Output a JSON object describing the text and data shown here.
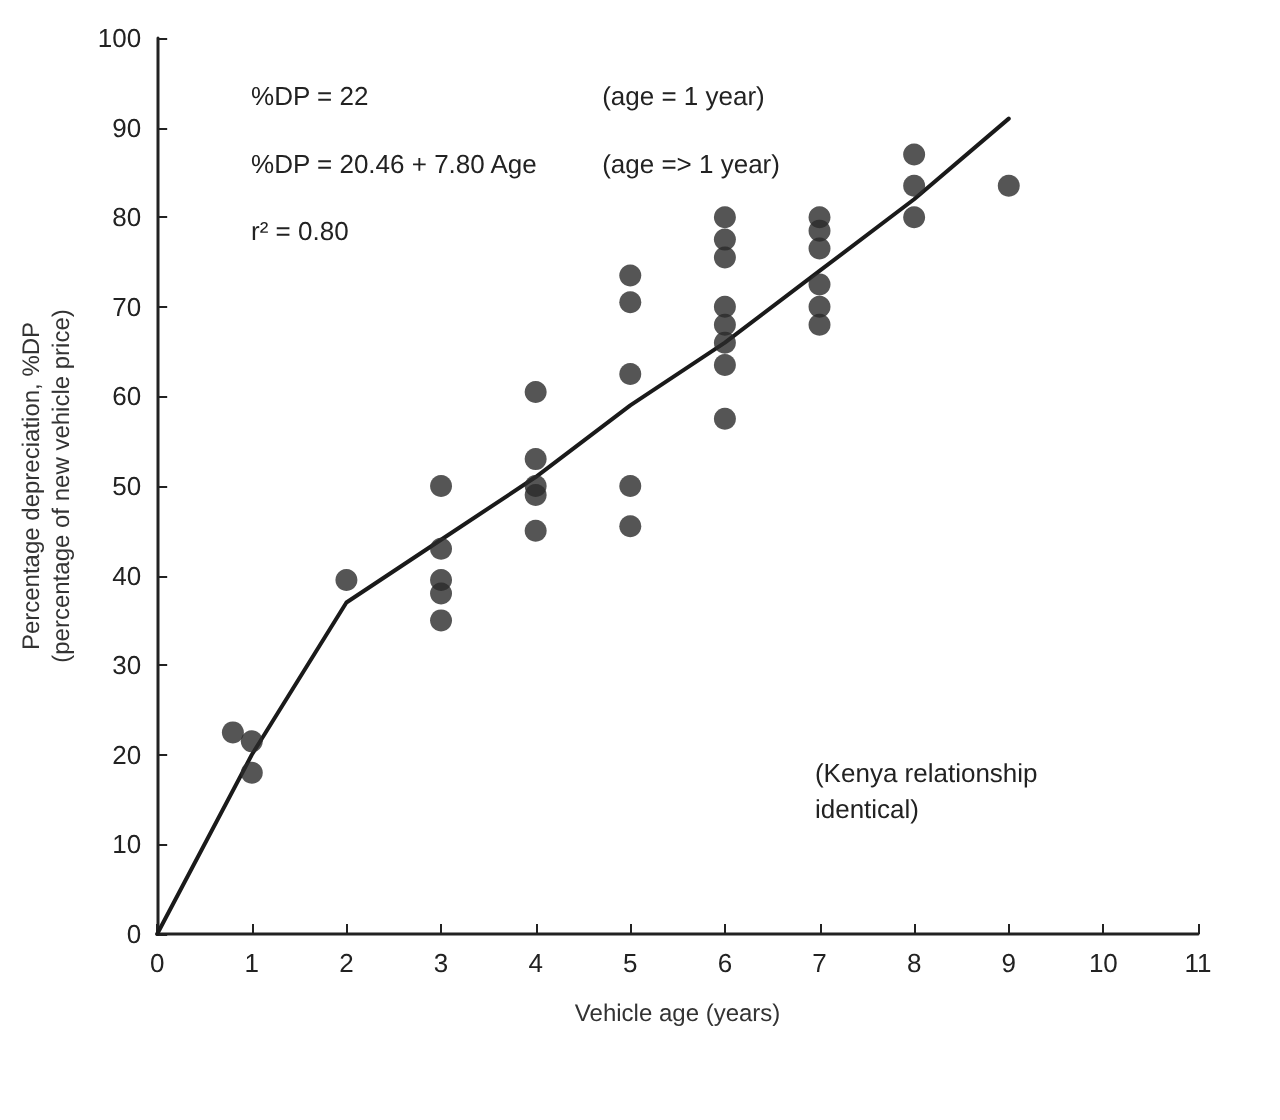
{
  "chart_data": {
    "type": "scatter",
    "xlabel": "Vehicle age (years)",
    "ylabel": "Percentage depreciation, %DP\n(percentage of new vehicle price)",
    "xlim": [
      0,
      11
    ],
    "xticks": [
      0,
      1,
      2,
      3,
      4,
      5,
      6,
      7,
      8,
      9,
      10,
      11
    ],
    "ylim": [
      0,
      100
    ],
    "yticks": [
      0,
      10,
      20,
      30,
      40,
      50,
      60,
      70,
      80,
      90,
      100
    ],
    "grid": false,
    "marker": "circle",
    "annotations": [
      "%DP = 22",
      "(age = 1 year)",
      "%DP = 20.46 + 7.80 Age",
      "(age => 1 year)",
      "r² = 0.80",
      "(Kenya relationship\nidentical)"
    ],
    "series": [
      {
        "color": "#2b2b2b",
        "x": [
          0.8,
          1,
          1,
          2,
          3,
          3,
          3,
          3,
          3,
          4,
          4,
          4,
          4,
          4,
          5,
          5,
          5,
          5,
          5,
          6,
          6,
          6,
          6,
          6,
          6,
          6,
          6,
          7,
          7,
          7,
          7,
          7,
          7,
          8,
          8,
          8,
          9
        ],
        "values": [
          22.5,
          21.5,
          18,
          39.5,
          50,
          43,
          39.5,
          38,
          35,
          60.5,
          53,
          50,
          49,
          45,
          73.5,
          70.5,
          62.5,
          50,
          45.5,
          80,
          77.5,
          75.5,
          70,
          68,
          66,
          63.5,
          57.5,
          80,
          78.5,
          76.5,
          72.5,
          70,
          68,
          87,
          83.5,
          80,
          83.5
        ]
      },
      {
        "type": "line",
        "color": "#1a1a1a",
        "marker": "none",
        "line_style": "solid",
        "x": [
          0,
          1,
          2,
          3,
          4,
          5,
          6,
          7,
          8,
          9
        ],
        "values": [
          0,
          20,
          37,
          44,
          51,
          59,
          66,
          74,
          82,
          91
        ]
      }
    ]
  }
}
